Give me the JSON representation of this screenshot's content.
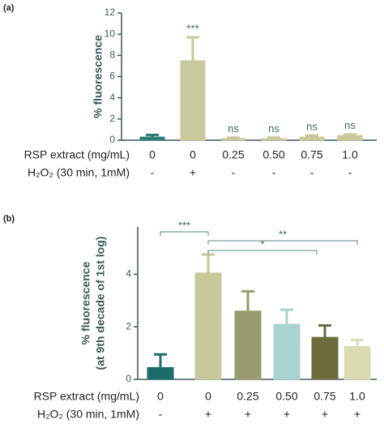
{
  "chart_data": [
    {
      "type": "bar",
      "panel": "(a)",
      "ylabel": [
        "% fluorescence"
      ],
      "ylim": [
        0,
        12
      ],
      "yticks": [
        0,
        2,
        4,
        6,
        8,
        10,
        12
      ],
      "values": [
        0.3,
        7.5,
        0.15,
        0.15,
        0.3,
        0.45
      ],
      "errors": [
        0.2,
        2.2,
        0.1,
        0.1,
        0.15,
        0.1
      ],
      "colors": [
        "#2e7c78",
        "#c9c99b",
        "#c9c99b",
        "#c9c99b",
        "#c9c99b",
        "#c9c99b"
      ],
      "annotations": [
        "",
        "***",
        "ns",
        "ns",
        "ns",
        "ns"
      ],
      "rows": [
        {
          "label": "RSP extract (mg/mL)",
          "cells": [
            "0",
            "0",
            "0.25",
            "0.50",
            "0.75",
            "1.0"
          ]
        },
        {
          "label": "H₂O₂ (30 min, 1mM)",
          "cells": [
            "-",
            "+",
            "-",
            "-",
            "-",
            "-"
          ]
        }
      ]
    },
    {
      "type": "bar",
      "panel": "(b)",
      "ylabel": [
        "% fluorescence",
        "(at 9th decade of 1st log)"
      ],
      "ylim": [
        0,
        5.8
      ],
      "yticks": [
        0,
        2,
        4
      ],
      "values": [
        0.45,
        4.05,
        2.6,
        2.1,
        1.6,
        1.25
      ],
      "errors": [
        0.5,
        0.7,
        0.75,
        0.55,
        0.45,
        0.25
      ],
      "colors": [
        "#1d6b6b",
        "#c6c89b",
        "#9a9a70",
        "#a8d3d3",
        "#6b6b3c",
        "#dadbb2"
      ],
      "brackets": [
        "***",
        "*",
        "**"
      ],
      "rows": [
        {
          "label": "RSP extract (mg/mL)",
          "cells": [
            "0",
            "0",
            "0.25",
            "0.50",
            "0.75",
            "1.0"
          ]
        },
        {
          "label": "H₂O₂ (30 min, 1mM)",
          "cells": [
            "-",
            "+",
            "+",
            "+",
            "+",
            "+"
          ]
        }
      ]
    }
  ]
}
